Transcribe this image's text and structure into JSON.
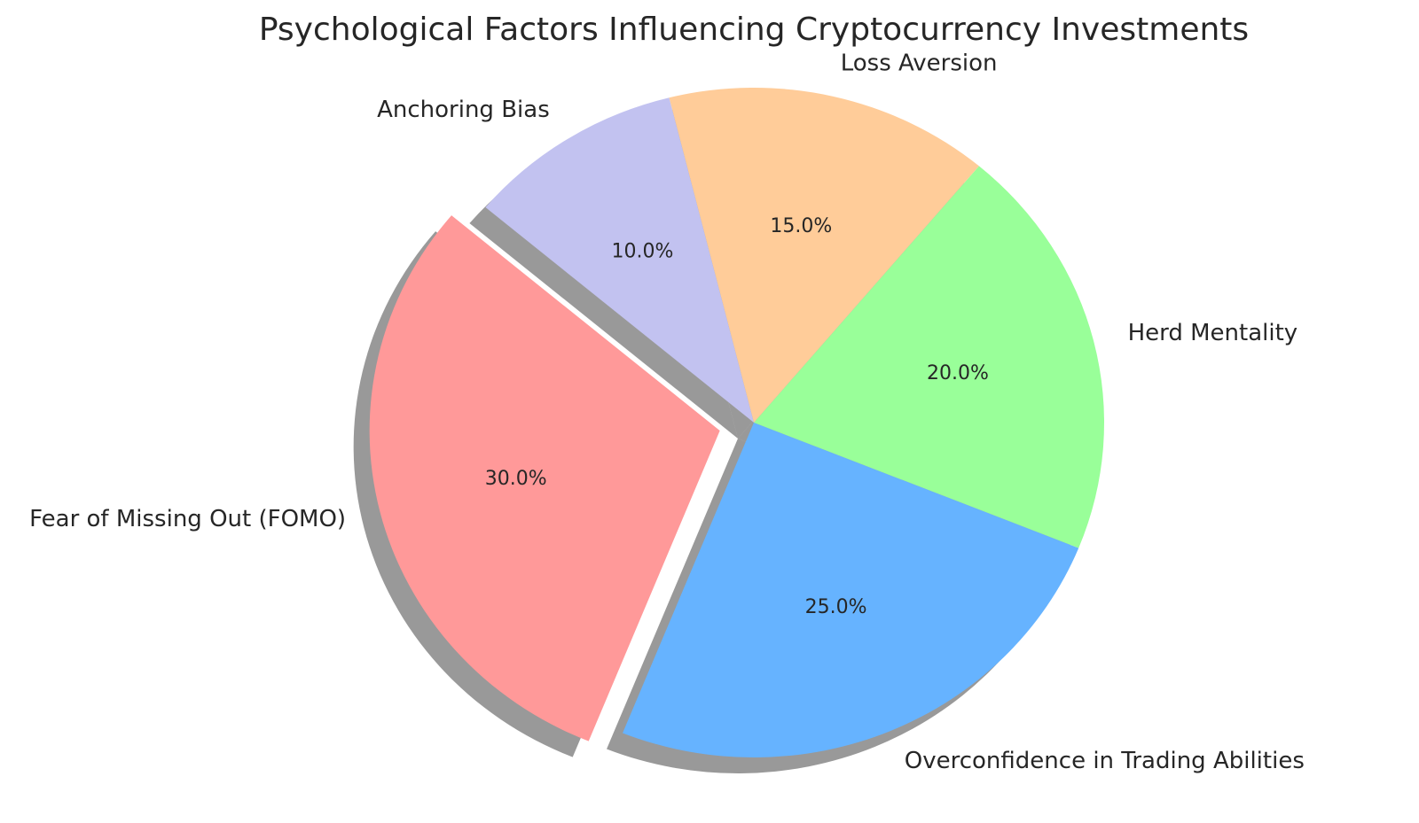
{
  "chart_data": {
    "type": "pie",
    "title": "Psychological Factors Influencing Cryptocurrency Investments",
    "categories": [
      "Fear of Missing Out (FOMO)",
      "Overconfidence in Trading Abilities",
      "Herd Mentality",
      "Loss Aversion",
      "Anchoring Bias"
    ],
    "values": [
      30,
      25,
      20,
      15,
      10
    ],
    "value_labels": [
      "30.0%",
      "25.0%",
      "20.0%",
      "15.0%",
      "10.0%"
    ],
    "colors": [
      "#ff9999",
      "#66b3ff",
      "#99ff99",
      "#ffcc99",
      "#c2c2f0"
    ],
    "explode": [
      0.1,
      0,
      0,
      0,
      0
    ],
    "shadow": true
  }
}
